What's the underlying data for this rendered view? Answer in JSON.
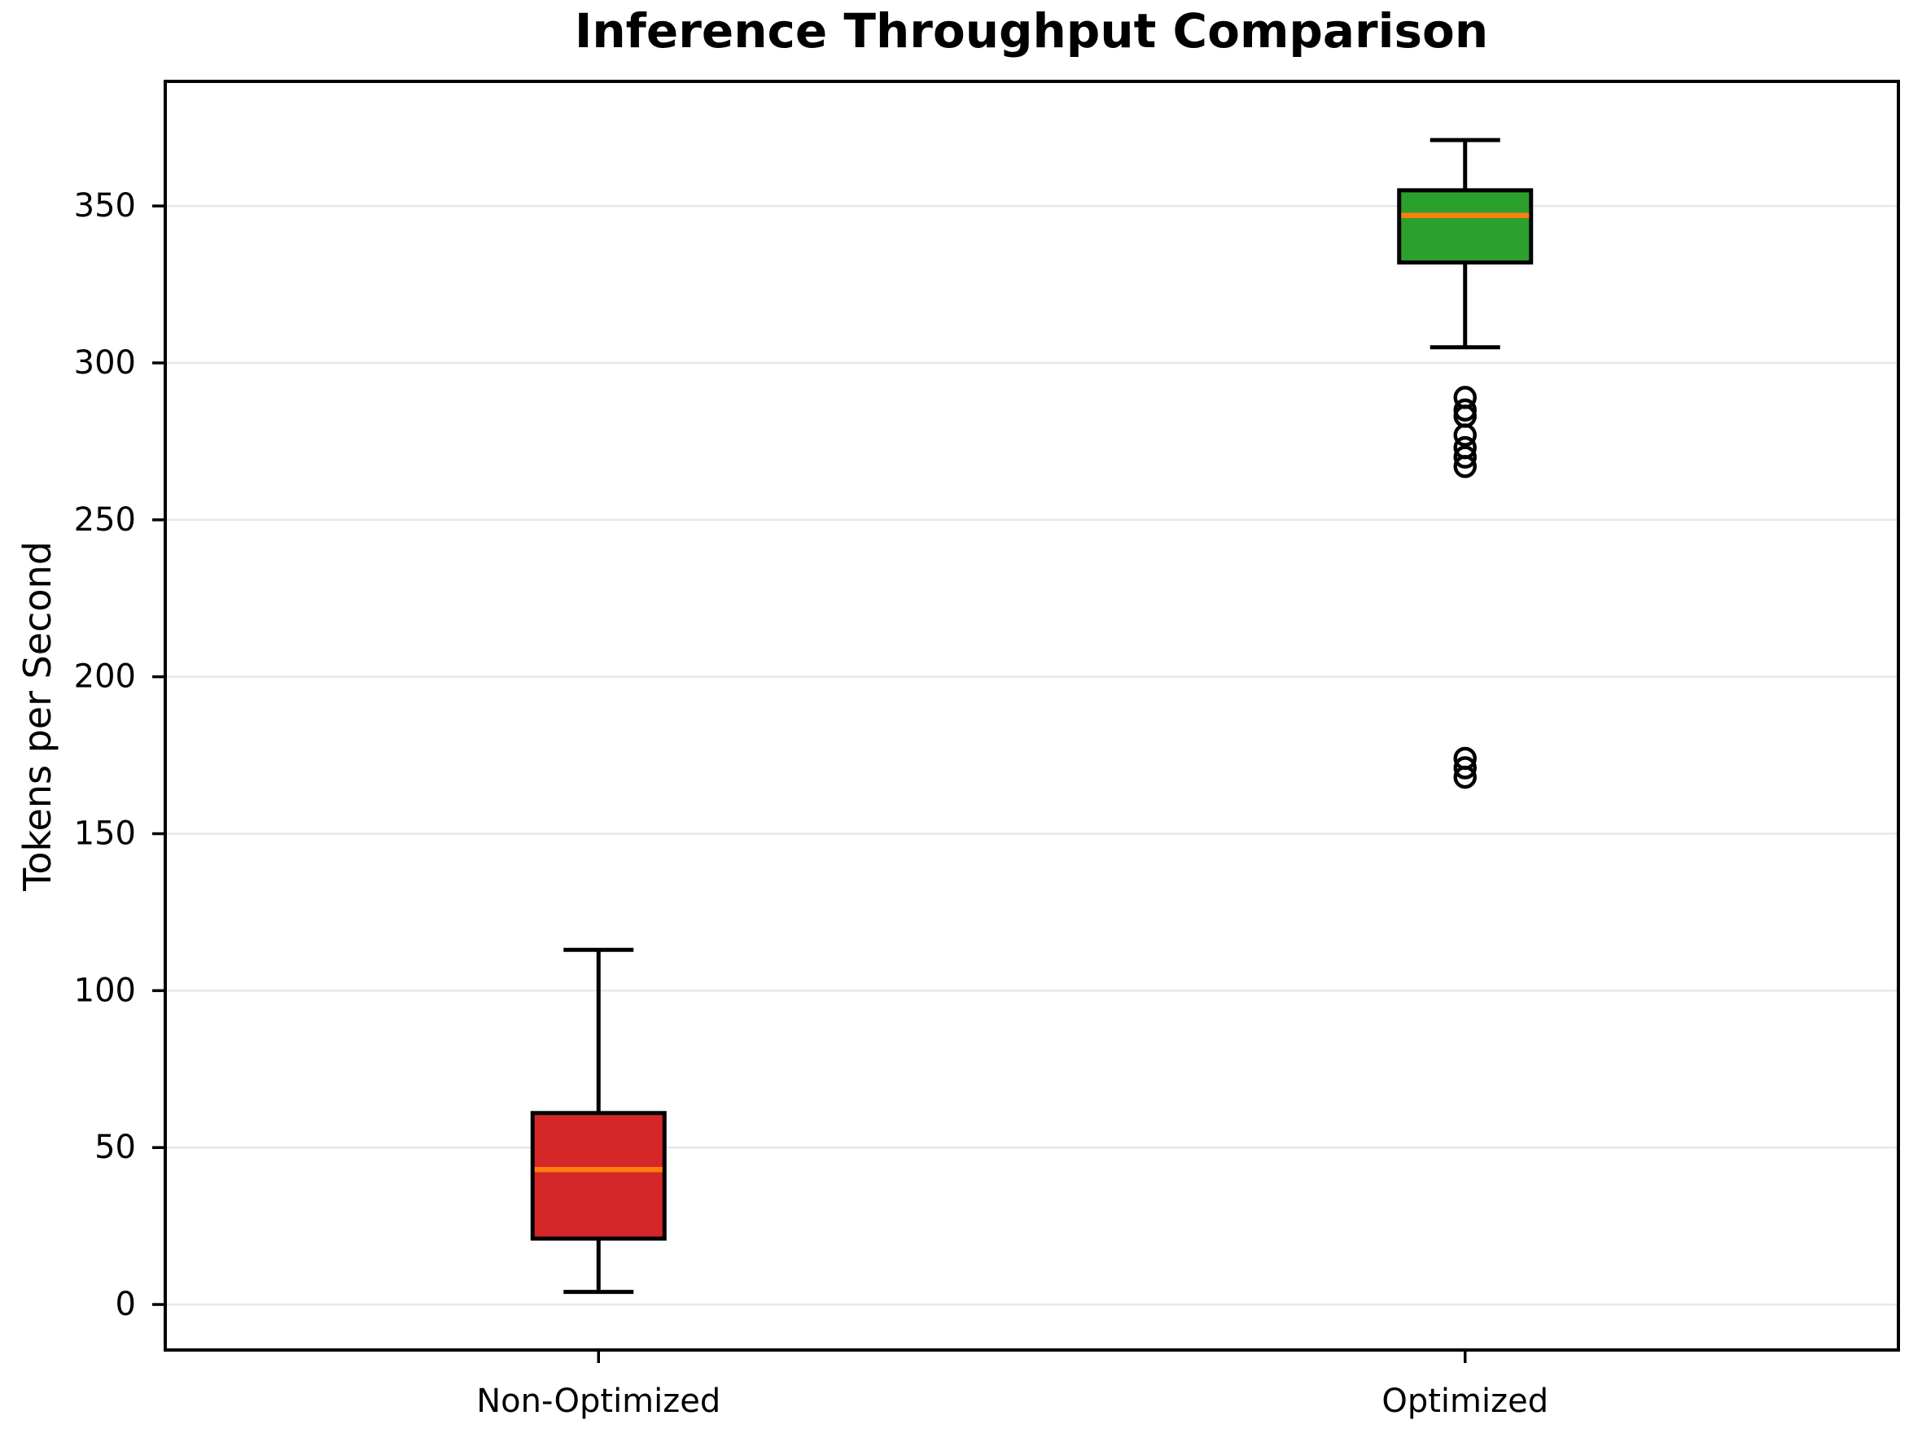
{
  "chart_data": {
    "type": "boxplot",
    "title": "Inference Throughput Comparison",
    "ylabel": "Tokens per Second",
    "xlabel": "",
    "categories": [
      "Non-Optimized",
      "Optimized"
    ],
    "yticks": [
      0,
      50,
      100,
      150,
      200,
      250,
      300,
      350
    ],
    "ylim": [
      -14.5,
      389.7
    ],
    "grid": "horizontal",
    "legend": "none",
    "series": [
      {
        "name": "Non-Optimized",
        "whisker_low": 4,
        "q1": 21,
        "median": 43,
        "q3": 61,
        "whisker_high": 113,
        "outliers": [],
        "box_color": "#d62728"
      },
      {
        "name": "Optimized",
        "whisker_low": 305,
        "q1": 332,
        "median": 347,
        "q3": 355,
        "whisker_high": 371,
        "outliers": [
          289,
          285,
          283,
          277,
          273,
          270,
          267,
          174,
          171,
          168
        ],
        "box_color": "#2ca02c"
      }
    ],
    "median_color": "#ff7f0e",
    "gridline_color": "#e8e8e8",
    "axis_color": "#000000",
    "background": "#ffffff"
  }
}
